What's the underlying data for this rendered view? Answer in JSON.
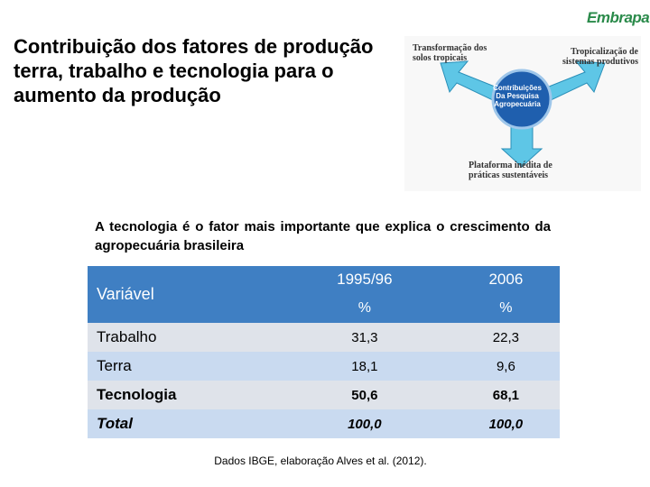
{
  "logo": "Embrapa",
  "title": "Contribuição dos fatores de produção terra, trabalho e tecnologia para o aumento da produção",
  "diagram": {
    "center": "Contribuições Da Pesquisa Agropecuária",
    "left": "Transformação dos solos tropicais",
    "right": "Tropicalização de sistemas produtivos",
    "bottom": "Plataforma inédita de práticas sustentáveis"
  },
  "subtitle": "A tecnologia é o fator mais importante que explica o crescimento da agropecuária brasileira",
  "table": {
    "header": [
      "Variável",
      "1995/96",
      "2006"
    ],
    "units": [
      "%",
      "%"
    ],
    "rows": [
      [
        "Trabalho",
        "31,3",
        "22,3"
      ],
      [
        "Terra",
        "18,1",
        "9,6"
      ],
      [
        "Tecnologia",
        "50,6",
        "68,1"
      ],
      [
        "Total",
        "100,0",
        "100,0"
      ]
    ]
  },
  "source": "Dados IBGE, elaboração Alves et al. (2012)."
}
